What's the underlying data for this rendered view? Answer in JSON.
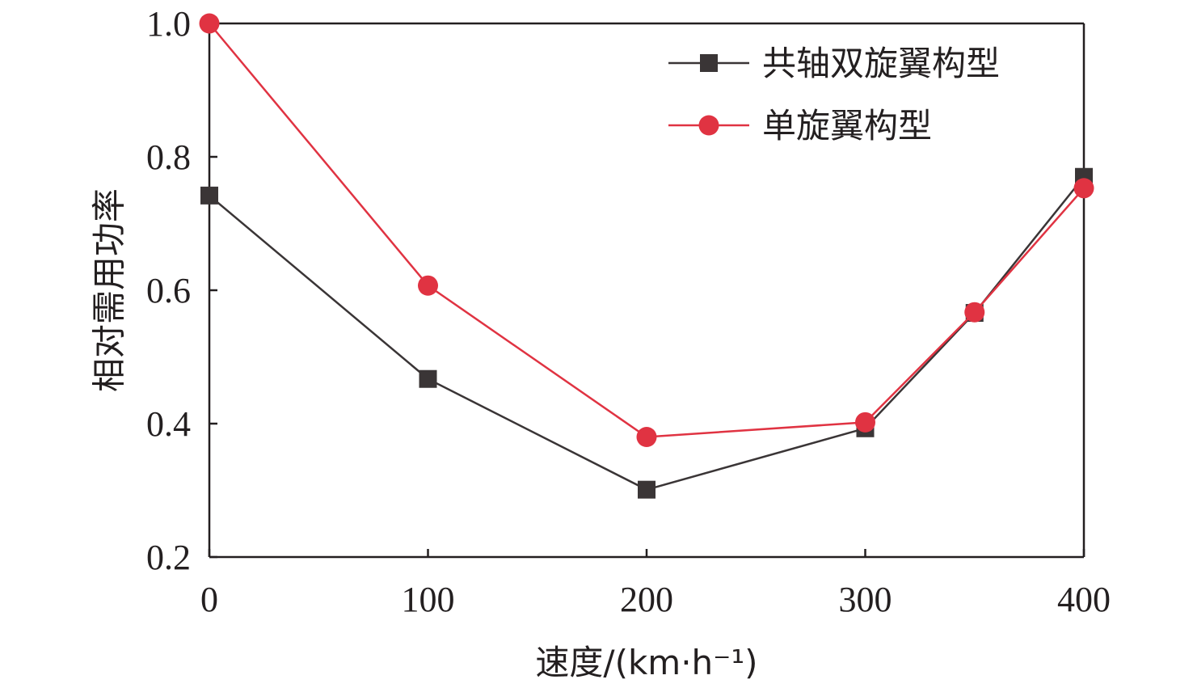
{
  "chart_data": {
    "type": "line",
    "title": "",
    "xlabel": "速度/(km·h⁻¹)",
    "ylabel": "相对需用功率",
    "xlim": [
      0,
      400
    ],
    "ylim": [
      0.2,
      1.0
    ],
    "x_ticks": [
      "0",
      "100",
      "200",
      "300",
      "400"
    ],
    "y_ticks": [
      "0.2",
      "0.4",
      "0.6",
      "0.8",
      "1.0"
    ],
    "grid": false,
    "legend_position": "top-right",
    "series": [
      {
        "name": "共轴双旋翼构型",
        "marker": "square",
        "color": "#3a3536",
        "points": [
          {
            "x": 0,
            "y": 0.742
          },
          {
            "x": 100,
            "y": 0.467
          },
          {
            "x": 200,
            "y": 0.301
          },
          {
            "x": 300,
            "y": 0.393
          },
          {
            "x": 350,
            "y": 0.566
          },
          {
            "x": 400,
            "y": 0.77
          }
        ]
      },
      {
        "name": "单旋翼构型",
        "marker": "circle",
        "color": "#e03342",
        "points": [
          {
            "x": 0,
            "y": 1.0
          },
          {
            "x": 100,
            "y": 0.607
          },
          {
            "x": 200,
            "y": 0.38
          },
          {
            "x": 300,
            "y": 0.402
          },
          {
            "x": 350,
            "y": 0.567
          },
          {
            "x": 400,
            "y": 0.753
          }
        ]
      }
    ]
  }
}
